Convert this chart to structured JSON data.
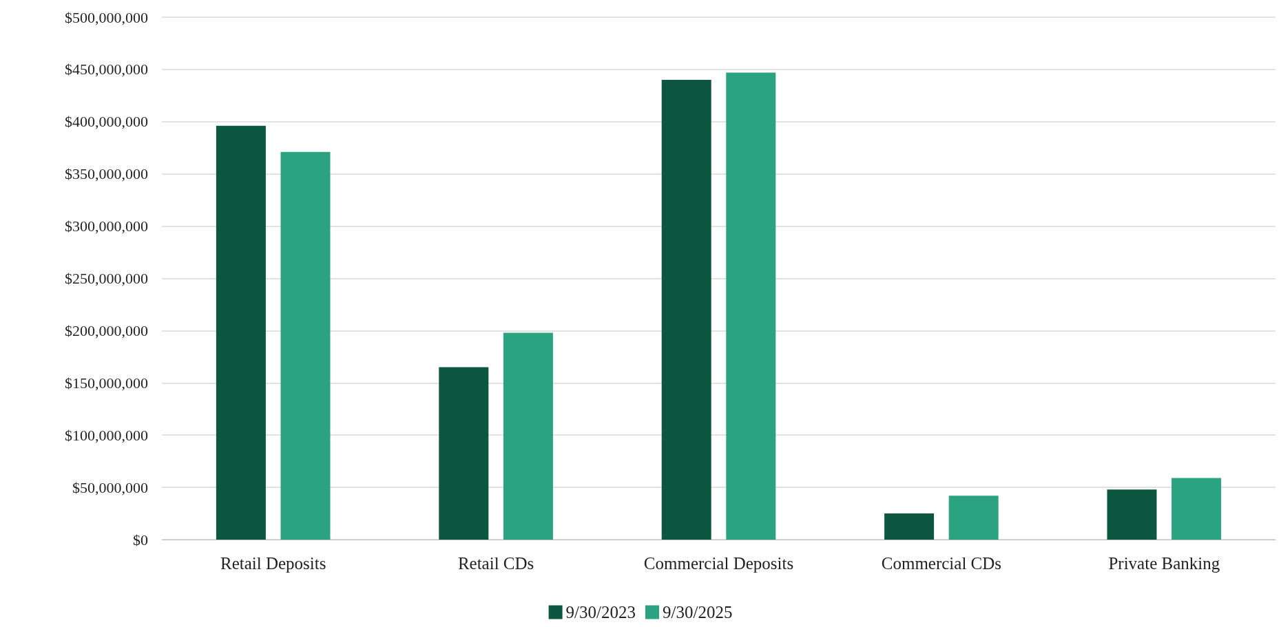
{
  "chart_data": {
    "type": "bar",
    "categories": [
      "Retail Deposits",
      "Retail CDs",
      "Commercial Deposits",
      "Commercial CDs",
      "Private Banking"
    ],
    "series": [
      {
        "name": "9/30/2023",
        "color": "#0d5640",
        "values": [
          396000000,
          165000000,
          440000000,
          25000000,
          48000000
        ]
      },
      {
        "name": "9/30/2025",
        "color": "#2ba380",
        "values": [
          371000000,
          198000000,
          447000000,
          42000000,
          59000000
        ]
      }
    ],
    "ylim": [
      0,
      500000000
    ],
    "yticks": [
      {
        "value": 0,
        "label": "$0"
      },
      {
        "value": 50000000,
        "label": "$50,000,000"
      },
      {
        "value": 100000000,
        "label": "$100,000,000"
      },
      {
        "value": 150000000,
        "label": "$150,000,000"
      },
      {
        "value": 200000000,
        "label": "$200,000,000"
      },
      {
        "value": 250000000,
        "label": "$250,000,000"
      },
      {
        "value": 300000000,
        "label": "$300,000,000"
      },
      {
        "value": 350000000,
        "label": "$350,000,000"
      },
      {
        "value": 400000000,
        "label": "$400,000,000"
      },
      {
        "value": 450000000,
        "label": "$450,000,000"
      },
      {
        "value": 500000000,
        "label": "$500,000,000"
      }
    ],
    "grid": "y",
    "legend": "bottom"
  }
}
